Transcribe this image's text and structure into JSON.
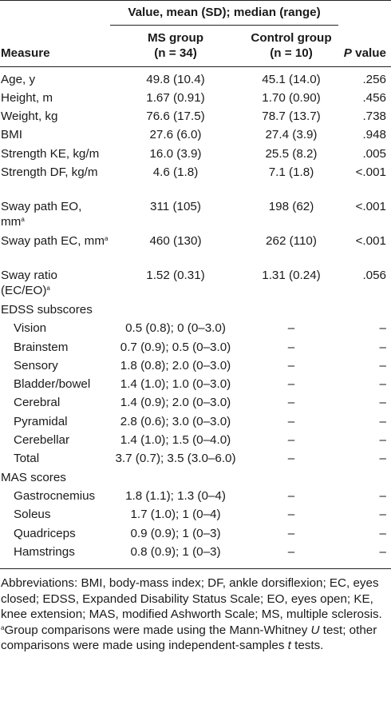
{
  "table": {
    "header": {
      "group_span": "Value, mean (SD); median (range)",
      "measure": "Measure",
      "ms_group": "MS group",
      "ms_n": "(n = 34)",
      "control_group": "Control group",
      "control_n": "(n = 10)",
      "p_italic": "P",
      "p_rest": " value"
    },
    "rows": [
      {
        "label": "Age, y",
        "ms": "49.8 (10.4)",
        "control": "45.1 (14.0)",
        "p": ".256"
      },
      {
        "label": "Height, m",
        "ms": "1.67 (0.91)",
        "control": "1.70 (0.90)",
        "p": ".456"
      },
      {
        "label": "Weight, kg",
        "ms": "76.6 (17.5)",
        "control": "78.7 (13.7)",
        "p": ".738"
      },
      {
        "label": "BMI",
        "ms": "27.6 (6.0)",
        "control": "27.4 (3.9)",
        "p": ".948"
      },
      {
        "label": "Strength KE, kg/m",
        "ms": "16.0 (3.9)",
        "control": "25.5 (8.2)",
        "p": ".005"
      },
      {
        "label": "Strength DF, kg/m",
        "ms": "4.6 (1.8)",
        "control": "7.1 (1.8)",
        "p": "<.001"
      },
      {
        "label": "Sway path EO, mm",
        "sup": "a",
        "ms": "311 (105)",
        "control": "198 (62)",
        "p": "<.001"
      },
      {
        "label": "Sway path EC, mm",
        "sup": "a",
        "ms": "460 (130)",
        "control": "262 (110)",
        "p": "<.001"
      },
      {
        "label": "Sway ratio (EC/EO)",
        "sup": "a",
        "ms": "1.52 (0.31)",
        "control": "1.31 (0.24)",
        "p": ".056"
      }
    ],
    "edss_heading": "EDSS subscores",
    "edss": [
      {
        "label": "Vision",
        "ms": "0.5 (0.8); 0 (0–3.0)",
        "control": "–",
        "p": "–"
      },
      {
        "label": "Brainstem",
        "ms": "0.7 (0.9); 0.5 (0–3.0)",
        "control": "–",
        "p": "–"
      },
      {
        "label": "Sensory",
        "ms": "1.8 (0.8); 2.0 (0–3.0)",
        "control": "–",
        "p": "–"
      },
      {
        "label": "Bladder/bowel",
        "ms": "1.4 (1.0); 1.0 (0–3.0)",
        "control": "–",
        "p": "–"
      },
      {
        "label": "Cerebral",
        "ms": "1.4 (0.9); 2.0 (0–3.0)",
        "control": "–",
        "p": "–"
      },
      {
        "label": "Pyramidal",
        "ms": "2.8 (0.6); 3.0 (0–3.0)",
        "control": "–",
        "p": "–"
      },
      {
        "label": "Cerebellar",
        "ms": "1.4 (1.0); 1.5 (0–4.0)",
        "control": "–",
        "p": "–"
      },
      {
        "label": "Total",
        "ms": "3.7 (0.7); 3.5 (3.0–6.0)",
        "control": "–",
        "p": "–"
      }
    ],
    "mas_heading": "MAS scores",
    "mas": [
      {
        "label": "Gastrocnemius",
        "ms": "1.8 (1.1); 1.3 (0–4)",
        "control": "–",
        "p": "–"
      },
      {
        "label": "Soleus",
        "ms": "1.7 (1.0); 1 (0–4)",
        "control": "–",
        "p": "–"
      },
      {
        "label": "Quadriceps",
        "ms": "0.9 (0.9); 1 (0–3)",
        "control": "–",
        "p": "–"
      },
      {
        "label": "Hamstrings",
        "ms": "0.8 (0.9); 1 (0–3)",
        "control": "–",
        "p": "–"
      }
    ]
  },
  "footnotes": {
    "abbreviations": "Abbreviations: BMI, body-mass index; DF, ankle dorsiflexion; EC, eyes closed; EDSS, Expanded Disability Status Scale; EO, eyes open; KE, knee extension; MAS, modified Ashworth Scale; MS, multiple sclerosis.",
    "note_marker": "a",
    "note_part1": "Group comparisons were made using the Mann-Whitney ",
    "note_u": "U",
    "note_part2": " test; other comparisons were made using independent-samples ",
    "note_t": "t",
    "note_part3": " tests."
  }
}
